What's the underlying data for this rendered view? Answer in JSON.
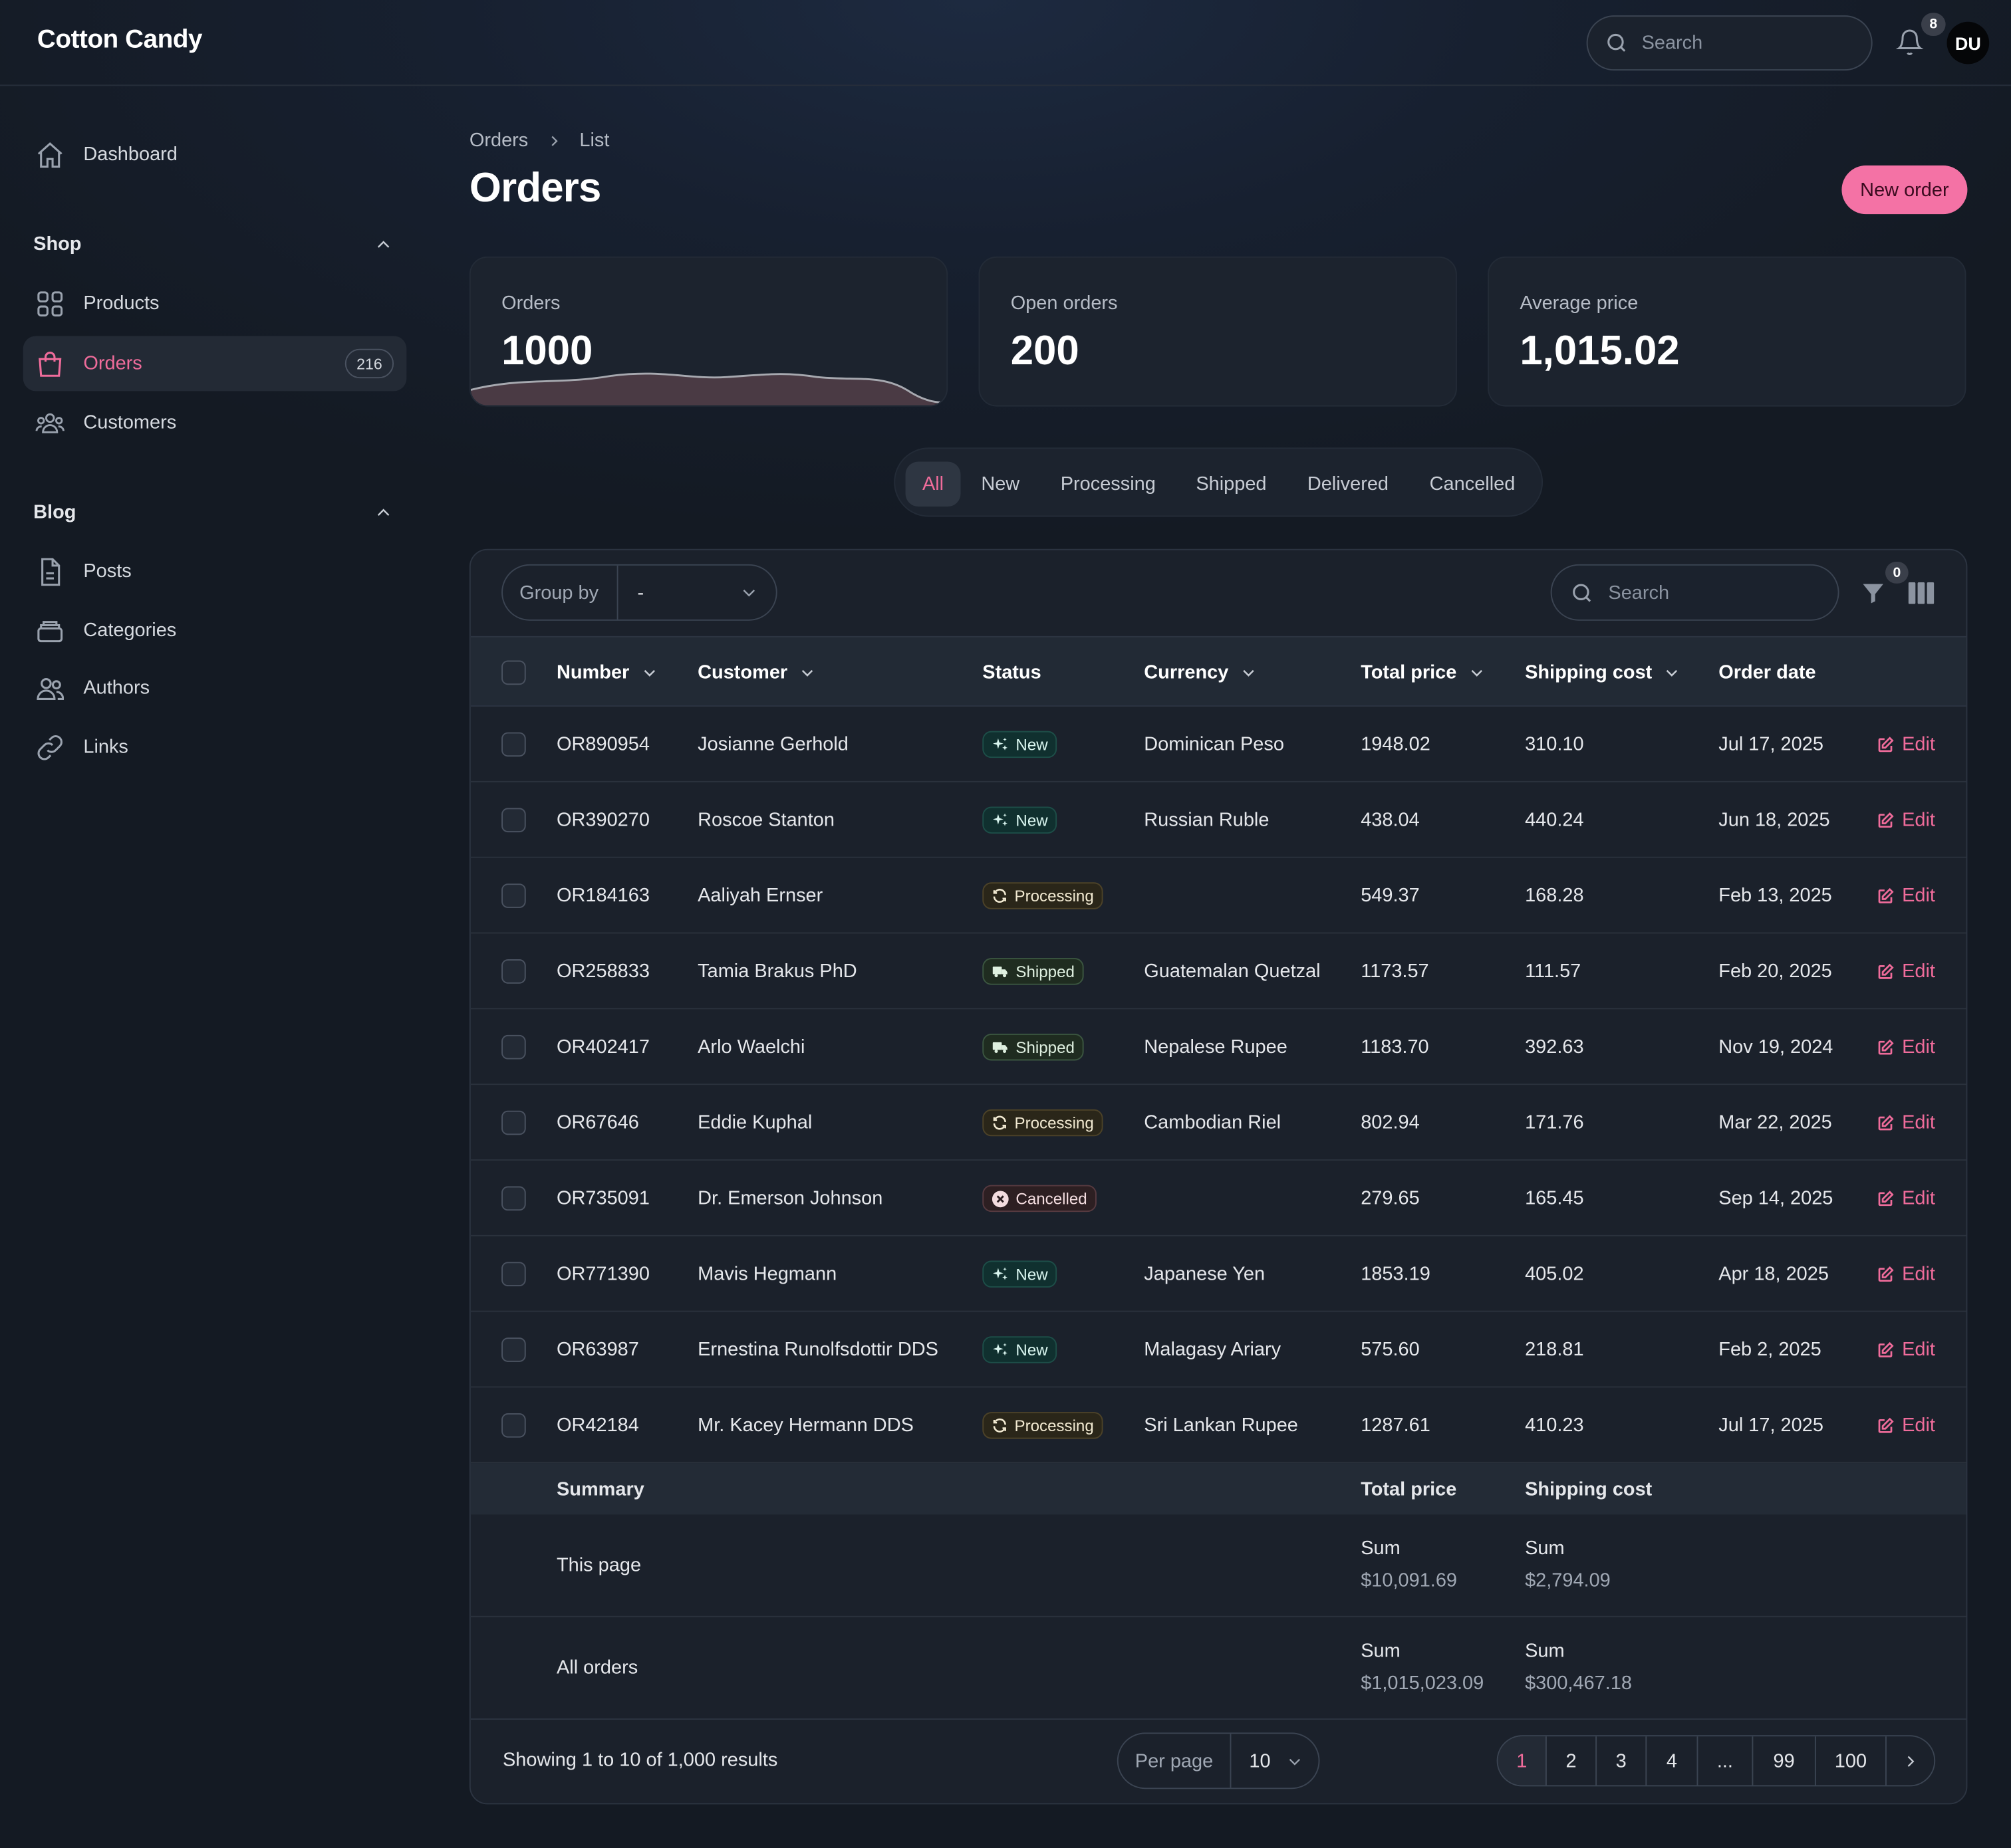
{
  "app": {
    "name": "Cotton Candy"
  },
  "topbar": {
    "search_placeholder": "Search",
    "notification_count": "8",
    "user_initials": "DU"
  },
  "sidebar": {
    "dashboard": "Dashboard",
    "shop": {
      "title": "Shop",
      "items": [
        {
          "label": "Products",
          "icon": "grid-icon"
        },
        {
          "label": "Orders",
          "icon": "shopping-bag-icon",
          "count": "216",
          "active": true
        },
        {
          "label": "Customers",
          "icon": "users-icon"
        }
      ]
    },
    "blog": {
      "title": "Blog",
      "items": [
        {
          "label": "Posts",
          "icon": "document-icon"
        },
        {
          "label": "Categories",
          "icon": "stack-icon"
        },
        {
          "label": "Authors",
          "icon": "people-icon"
        },
        {
          "label": "Links",
          "icon": "link-icon"
        }
      ]
    }
  },
  "breadcrumb": [
    "Orders",
    "List"
  ],
  "page": {
    "title": "Orders",
    "new_button": "New order"
  },
  "stats": [
    {
      "label": "Orders",
      "value": "1000"
    },
    {
      "label": "Open orders",
      "value": "200"
    },
    {
      "label": "Average price",
      "value": "1,015.02"
    }
  ],
  "tabs": [
    "All",
    "New",
    "Processing",
    "Shipped",
    "Delivered",
    "Cancelled"
  ],
  "toolbar": {
    "group_by_label": "Group by",
    "group_by_value": "-",
    "search_placeholder": "Search",
    "filter_count": "0"
  },
  "columns": [
    "Number",
    "Customer",
    "Status",
    "Currency",
    "Total price",
    "Shipping cost",
    "Order date"
  ],
  "rows": [
    {
      "number": "OR890954",
      "customer": "Josianne Gerhold",
      "status": "New",
      "currency": "Dominican Peso",
      "total": "1948.02",
      "shipping": "310.10",
      "date": "Jul 17, 2025"
    },
    {
      "number": "OR390270",
      "customer": "Roscoe Stanton",
      "status": "New",
      "currency": "Russian Ruble",
      "total": "438.04",
      "shipping": "440.24",
      "date": "Jun 18, 2025"
    },
    {
      "number": "OR184163",
      "customer": "Aaliyah Ernser",
      "status": "Processing",
      "currency": "",
      "total": "549.37",
      "shipping": "168.28",
      "date": "Feb 13, 2025"
    },
    {
      "number": "OR258833",
      "customer": "Tamia Brakus PhD",
      "status": "Shipped",
      "currency": "Guatemalan Quetzal",
      "total": "1173.57",
      "shipping": "111.57",
      "date": "Feb 20, 2025"
    },
    {
      "number": "OR402417",
      "customer": "Arlo Waelchi",
      "status": "Shipped",
      "currency": "Nepalese Rupee",
      "total": "1183.70",
      "shipping": "392.63",
      "date": "Nov 19, 2024"
    },
    {
      "number": "OR67646",
      "customer": "Eddie Kuphal",
      "status": "Processing",
      "currency": "Cambodian Riel",
      "total": "802.94",
      "shipping": "171.76",
      "date": "Mar 22, 2025"
    },
    {
      "number": "OR735091",
      "customer": "Dr. Emerson Johnson",
      "status": "Cancelled",
      "currency": "",
      "total": "279.65",
      "shipping": "165.45",
      "date": "Sep 14, 2025"
    },
    {
      "number": "OR771390",
      "customer": "Mavis Hegmann",
      "status": "New",
      "currency": "Japanese Yen",
      "total": "1853.19",
      "shipping": "405.02",
      "date": "Apr 18, 2025"
    },
    {
      "number": "OR63987",
      "customer": "Ernestina Runolfsdottir DDS",
      "status": "New",
      "currency": "Malagasy Ariary",
      "total": "575.60",
      "shipping": "218.81",
      "date": "Feb 2, 2025"
    },
    {
      "number": "OR42184",
      "customer": "Mr. Kacey Hermann DDS",
      "status": "Processing",
      "currency": "Sri Lankan Rupee",
      "total": "1287.61",
      "shipping": "410.23",
      "date": "Jul 17, 2025"
    }
  ],
  "edit_label": "Edit",
  "summary": {
    "title": "Summary",
    "total_label": "Total price",
    "shipping_label": "Shipping cost",
    "sum_label": "Sum",
    "this_page": {
      "label": "This page",
      "total": "$10,091.69",
      "shipping": "$2,794.09"
    },
    "all_orders": {
      "label": "All orders",
      "total": "$1,015,023.09",
      "shipping": "$300,467.18"
    }
  },
  "footer": {
    "showing": "Showing 1 to 10 of 1,000 results",
    "per_page_label": "Per page",
    "per_page_value": "10",
    "pages": [
      "1",
      "2",
      "3",
      "4",
      "...",
      "99",
      "100"
    ],
    "current_page": "1"
  },
  "colors": {
    "accent": "#f06c9b",
    "background": "#141a23",
    "card": "#1c232e"
  }
}
